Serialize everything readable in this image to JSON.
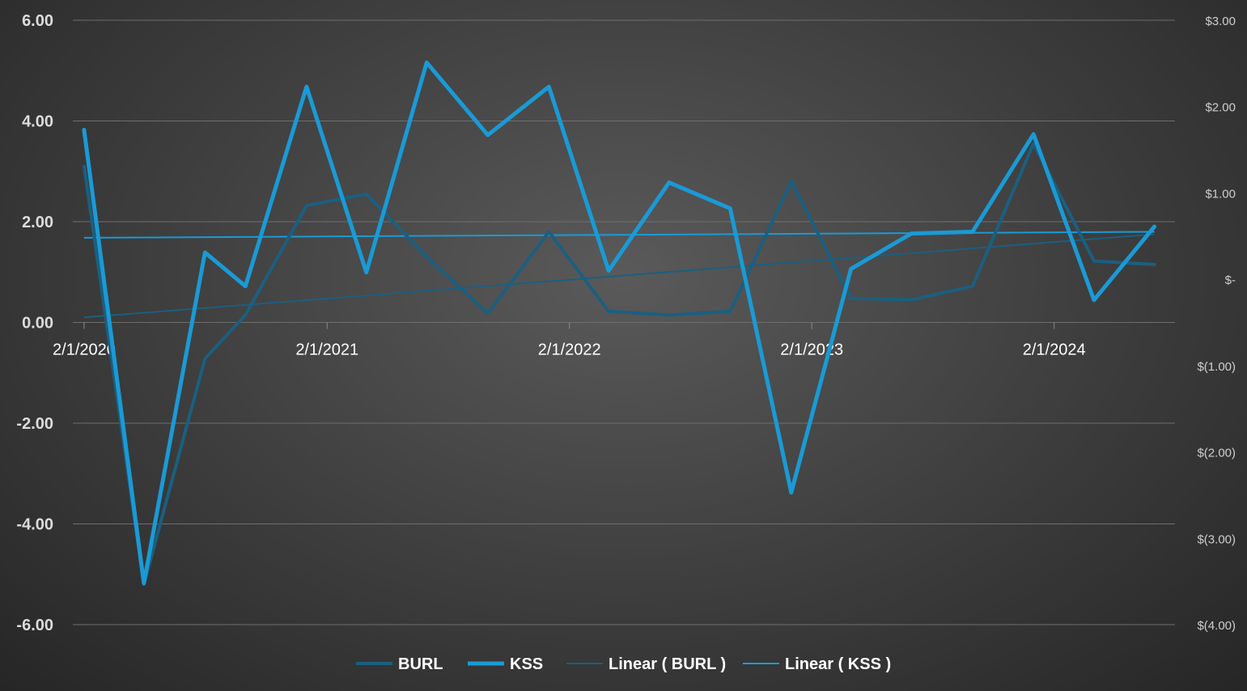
{
  "chart_data": {
    "type": "line",
    "x": [
      "2/1/2020",
      "5/1/2020",
      "8/1/2020",
      "10/1/2020",
      "1/1/2021",
      "4/1/2021",
      "7/1/2021",
      "10/1/2021",
      "1/1/2022",
      "4/1/2022",
      "7/1/2022",
      "10/1/2022",
      "1/1/2023",
      "4/1/2023",
      "7/1/2023",
      "10/1/2023",
      "1/1/2024",
      "4/1/2024",
      "7/1/2024"
    ],
    "xticks": [
      "2/1/2020",
      "2/1/2021",
      "2/1/2022",
      "2/1/2023",
      "2/1/2024"
    ],
    "series": [
      {
        "name": "BURL",
        "axis": "left",
        "color": "#1b5f80",
        "values": [
          3.1,
          -5.2,
          -0.72,
          0.15,
          2.32,
          2.55,
          1.3,
          0.18,
          1.8,
          0.22,
          0.15,
          0.22,
          2.8,
          0.48,
          0.45,
          0.72,
          3.55,
          1.22,
          1.15
        ]
      },
      {
        "name": "KSS",
        "axis": "right",
        "color": "#1a9ad6",
        "values": [
          1.73,
          -3.52,
          0.31,
          -0.08,
          2.23,
          0.08,
          2.51,
          1.67,
          2.23,
          0.1,
          1.12,
          0.82,
          -2.47,
          0.12,
          0.53,
          0.55,
          1.68,
          -0.24,
          0.61
        ]
      }
    ],
    "trendlines": [
      {
        "name": "Linear ( BURL )",
        "axis": "left",
        "color": "#1b5f80",
        "start": 0.1,
        "end": 1.75
      },
      {
        "name": "Linear ( KSS )",
        "axis": "right",
        "color": "#1a9ad6",
        "start": 0.48,
        "end": 0.55
      }
    ],
    "yaxis_left": {
      "ticks": [
        "6.00",
        "4.00",
        "2.00",
        "0.00",
        "-2.00",
        "-4.00",
        "-6.00"
      ],
      "ylim": [
        -6,
        6
      ]
    },
    "yaxis_right": {
      "ticks": [
        "$3.00",
        "$2.00",
        "$1.00",
        "$-",
        "$(1.00)",
        "$(2.00)",
        "$(3.00)",
        "$(4.00)"
      ],
      "ylim": [
        -4,
        3
      ]
    },
    "grid": true,
    "legend_position": "bottom",
    "title": "",
    "xlabel": "",
    "ylabel": ""
  }
}
